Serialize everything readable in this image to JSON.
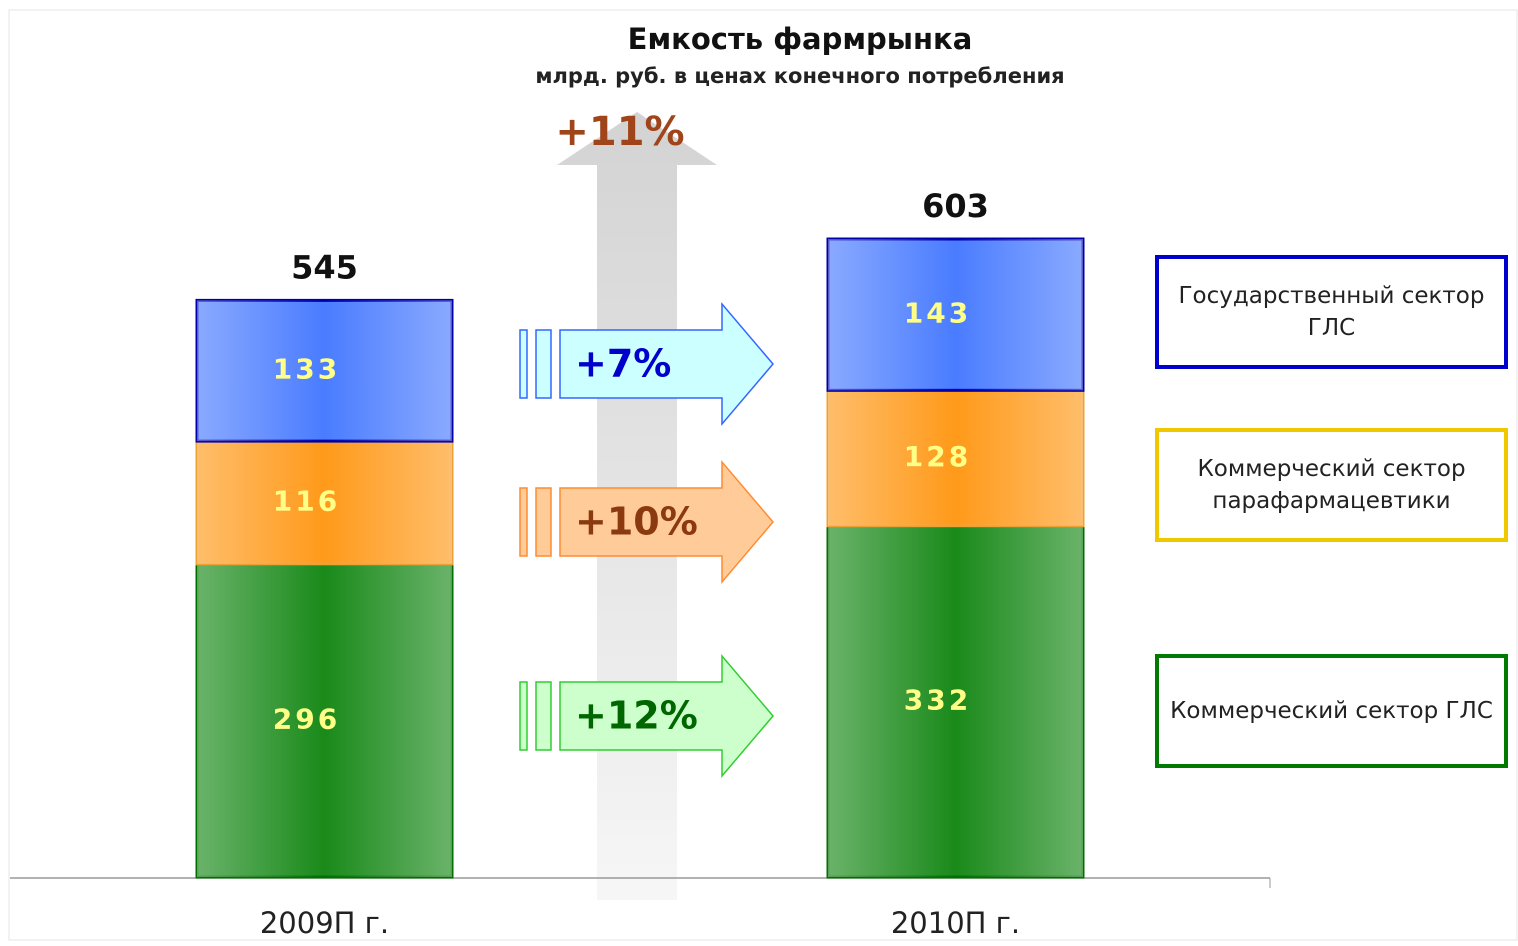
{
  "chart_data": {
    "type": "stacked_bar",
    "title": "Емкость фармрынка",
    "subtitle": "млрд. руб. в ценах конечного потребления",
    "categories": [
      "2009П г.",
      "2010П г."
    ],
    "series": [
      {
        "name": "Коммерческий сектор ГЛС",
        "color": "#1a8a1a",
        "values": [
          296,
          332
        ]
      },
      {
        "name": "Коммерческий сектор парафармацевтики",
        "color": "#ff9a1a",
        "values": [
          116,
          128
        ]
      },
      {
        "name": "Государственный сектор ГЛС",
        "color": "#4a7cff",
        "values": [
          133,
          143
        ]
      }
    ],
    "totals": [
      545,
      603
    ],
    "annotations": {
      "total_growth": "+11%",
      "series_growth": [
        "+12%",
        "+10%",
        "+7%"
      ]
    }
  }
}
